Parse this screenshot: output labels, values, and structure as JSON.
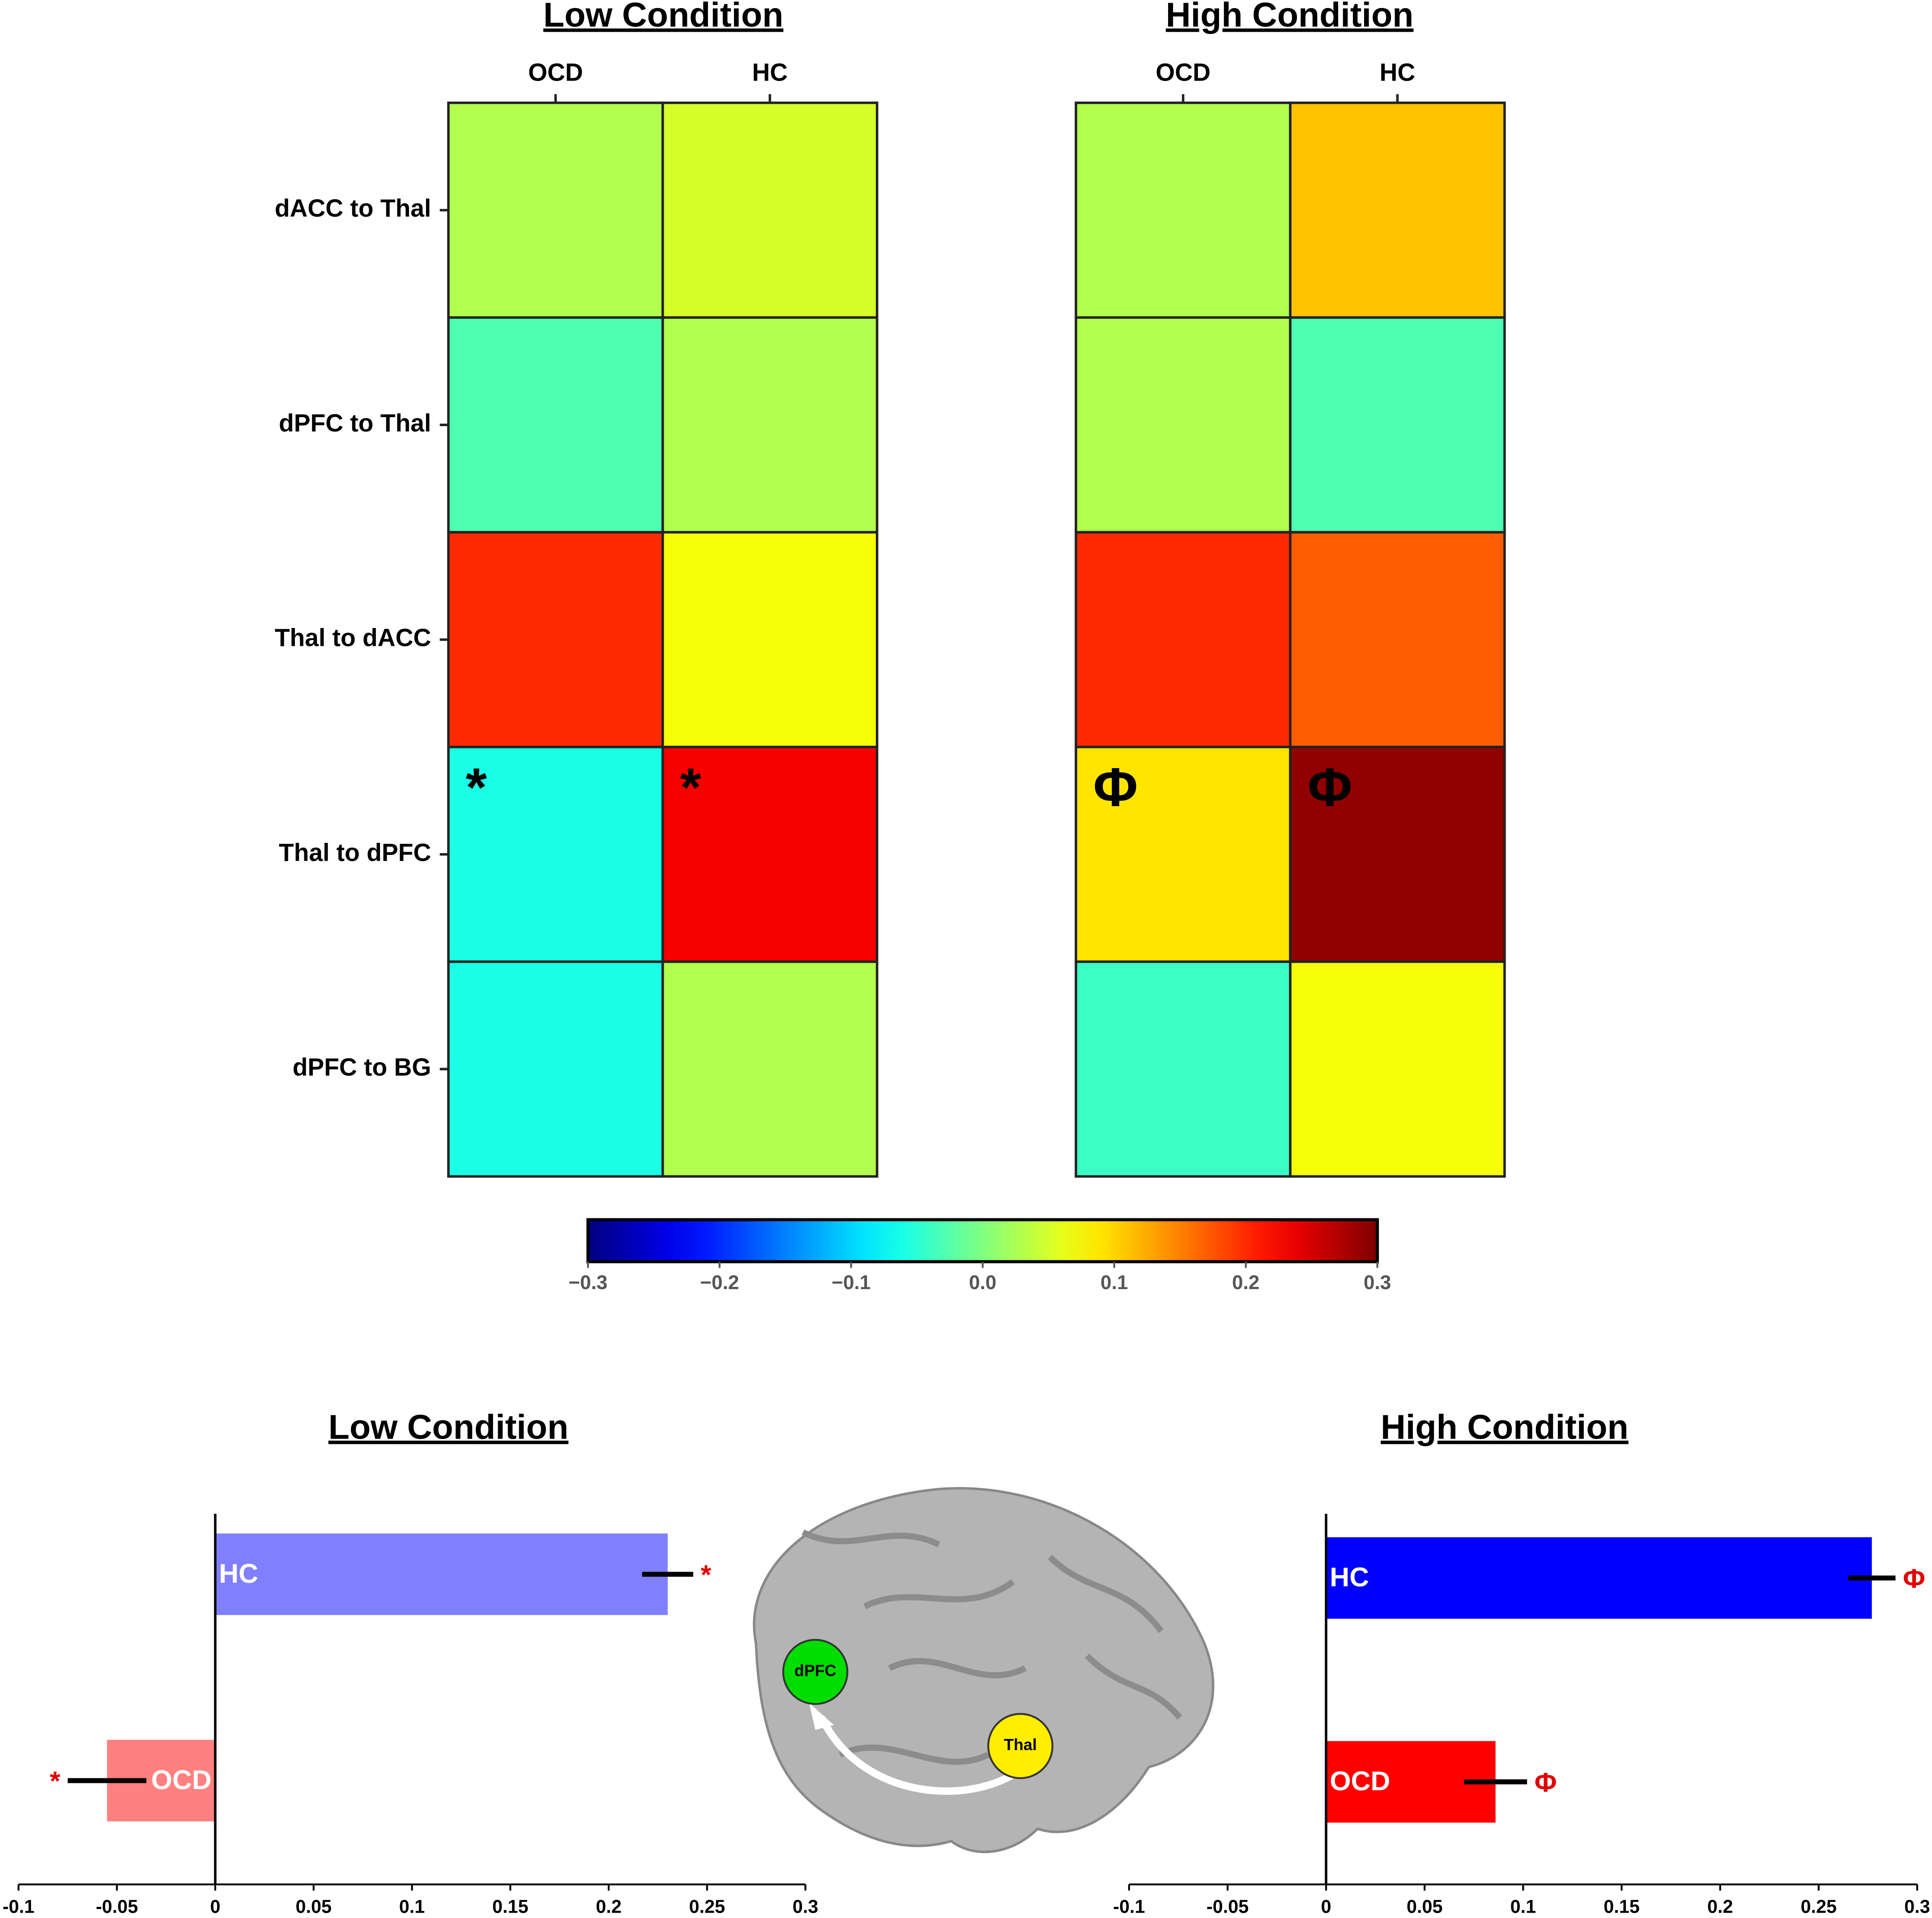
{
  "chart_data": [
    {
      "type": "heatmap",
      "title": "Low Condition",
      "x_categories": [
        "OCD",
        "HC"
      ],
      "y_categories": [
        "dACC to Thal",
        "dPFC to Thal",
        "Thal to dACC",
        "Thal to dPFC",
        "dPFC to BG"
      ],
      "values": [
        [
          0.03,
          0.05
        ],
        [
          -0.03,
          0.03
        ],
        [
          0.2,
          0.07
        ],
        [
          -0.06,
          0.23
        ],
        [
          -0.06,
          0.03
        ]
      ],
      "cell_labels": [
        [
          null,
          null
        ],
        [
          null,
          null
        ],
        [
          null,
          null
        ],
        [
          "*",
          "*"
        ],
        [
          null,
          null
        ]
      ]
    },
    {
      "type": "heatmap",
      "title": "High Condition",
      "x_categories": [
        "OCD",
        "HC"
      ],
      "y_categories": [
        "dACC to Thal",
        "dPFC to Thal",
        "Thal to dACC",
        "Thal to dPFC",
        "dPFC to BG"
      ],
      "values": [
        [
          0.03,
          0.11
        ],
        [
          0.03,
          -0.03
        ],
        [
          0.2,
          0.17
        ],
        [
          0.09,
          0.29
        ],
        [
          -0.04,
          0.07
        ]
      ],
      "cell_labels": [
        [
          null,
          null
        ],
        [
          null,
          null
        ],
        [
          null,
          null
        ],
        [
          "Φ",
          "Φ"
        ],
        [
          null,
          null
        ]
      ]
    },
    {
      "type": "colorbar",
      "colormap": "jet",
      "lim": [
        -0.3,
        0.3
      ],
      "ticks": [
        {
          "value": -0.3,
          "label": "−0.3"
        },
        {
          "value": -0.2,
          "label": "−0.2"
        },
        {
          "value": -0.1,
          "label": "−0.1"
        },
        {
          "value": 0,
          "label": "0.0"
        },
        0.1,
        0.2,
        0.3
      ]
    },
    {
      "type": "barh",
      "title": "Low Condition",
      "categories": [
        "HC",
        "OCD"
      ],
      "values": [
        0.23,
        -0.055
      ],
      "errors": [
        0.013,
        0.02
      ],
      "colors": [
        "#8080ff",
        "#ff8080"
      ],
      "annotations": [
        "*",
        "*"
      ],
      "xlim": [
        -0.1,
        0.3
      ],
      "xticks": [
        -0.1,
        -0.05,
        0,
        0.05,
        0.1,
        0.15,
        0.2,
        0.25,
        0.3
      ]
    },
    {
      "type": "barh",
      "title": "High Condition",
      "categories": [
        "HC",
        "OCD"
      ],
      "values": [
        0.277,
        0.086
      ],
      "errors": [
        0.012,
        0.016
      ],
      "colors": [
        "#0000ff",
        "#ff0000"
      ],
      "annotations": [
        "Φ",
        "Φ"
      ],
      "xlim": [
        -0.1,
        0.3
      ],
      "xticks": [
        -0.1,
        -0.05,
        0,
        0.05,
        0.1,
        0.15,
        0.2,
        0.25,
        0.3
      ]
    }
  ],
  "brain": {
    "labels": [
      "dPFC",
      "Thal"
    ]
  }
}
